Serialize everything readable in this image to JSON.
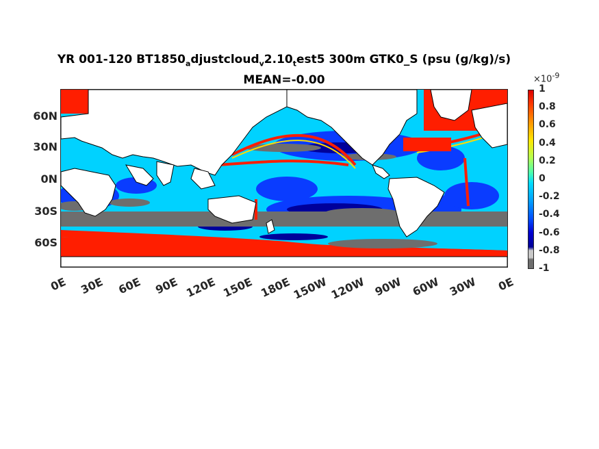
{
  "title": {
    "part1": "YR 001-120 BT1850",
    "sub1": "a",
    "part2": "djustcloud",
    "sub2": "v",
    "part3": "2.10",
    "sub3": "t",
    "part4": "est5 300m GTK0_S (psu (g/kg)/s)",
    "line2": "MEAN=-0.00"
  },
  "yaxis": {
    "labels": [
      "60N",
      "30N",
      "0N",
      "30S",
      "60S"
    ]
  },
  "xaxis": {
    "labels": [
      "0E",
      "30E",
      "60E",
      "90E",
      "120E",
      "150E",
      "180E",
      "150W",
      "120W",
      "90W",
      "60W",
      "30W",
      "0E"
    ]
  },
  "colorbar": {
    "exponent_base": "×10",
    "exponent_power": "-9",
    "ticks": [
      "1",
      "0.8",
      "0.6",
      "0.4",
      "0.2",
      "0",
      "-0.2",
      "-0.4",
      "-0.6",
      "-0.8",
      "-1"
    ],
    "colors": [
      "#dc0000",
      "#ff3c00",
      "#ff9600",
      "#ffe600",
      "#b4ff50",
      "#50ffaa",
      "#00dcff",
      "#00a0ff",
      "#0050ff",
      "#0000d2",
      "#000096",
      "#c8c8c8",
      "#6e6e6e"
    ]
  },
  "map_colors": {
    "land": "#ffffff",
    "coast": "#000000",
    "cyan": "#00d2ff",
    "blue": "#0a3cff",
    "darkblue": "#00009b",
    "red": "#ff1e00",
    "gray": "#6e6e6e",
    "yellow": "#ffdc00",
    "lightblue": "#64c8ff"
  }
}
